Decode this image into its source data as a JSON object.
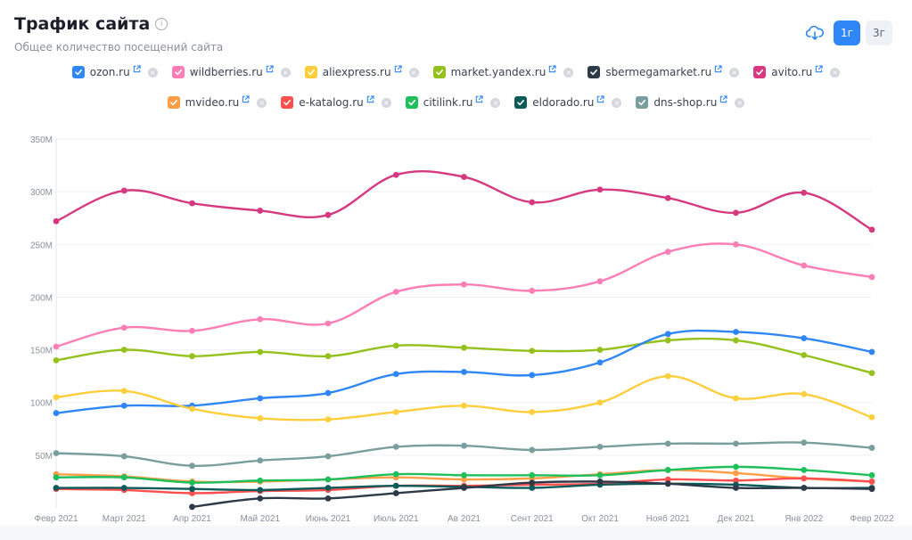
{
  "header": {
    "title": "Трафик сайта",
    "info_glyph": "i",
    "subtitle": "Общее количество посещений сайта"
  },
  "tools": {
    "download_icon": "cloud-download-icon",
    "period_1": "1г",
    "period_3": "3г",
    "active": "1г"
  },
  "legend": {
    "row1": [
      {
        "name": "ozon.ru",
        "color": "#2f86f6"
      },
      {
        "name": "wildberries.ru",
        "color": "#ff7eb6"
      },
      {
        "name": "aliexpress.ru",
        "color": "#ffce3d"
      },
      {
        "name": "market.yandex.ru",
        "color": "#94c11c"
      },
      {
        "name": "sbermegamarket.ru",
        "color": "#2e3a48"
      },
      {
        "name": "avito.ru",
        "color": "#d6397f"
      }
    ],
    "row2": [
      {
        "name": "mvideo.ru",
        "color": "#ff9e44"
      },
      {
        "name": "e-katalog.ru",
        "color": "#ff4f4f"
      },
      {
        "name": "citilink.ru",
        "color": "#1fbf5c"
      },
      {
        "name": "eldorado.ru",
        "color": "#0c5a5a"
      },
      {
        "name": "dns-shop.ru",
        "color": "#7a9e9e"
      }
    ]
  },
  "chart_data": {
    "type": "line",
    "categories": [
      "Февр 2021",
      "Март 2021",
      "Апр 2021",
      "Май 2021",
      "Июнь 2021",
      "Июль 2021",
      "Ав 2021",
      "Сент 2021",
      "Окт 2021",
      "Нояб 2021",
      "Дек 2021",
      "Янв 2022",
      "Февр 2022"
    ],
    "y_ticks": [
      "350M",
      "300M",
      "250M",
      "200M",
      "150M",
      "100M",
      "50M"
    ],
    "ylim": [
      0,
      350000000
    ],
    "grid": true,
    "series": [
      {
        "name": "avito.ru",
        "color": "#d6397f",
        "values": [
          272000000,
          301000000,
          289000000,
          282000000,
          278000000,
          316000000,
          314000000,
          290000000,
          302000000,
          294000000,
          280000000,
          299000000,
          264000000
        ]
      },
      {
        "name": "wildberries.ru",
        "color": "#ff7eb6",
        "values": [
          153000000,
          171000000,
          168000000,
          179000000,
          175000000,
          205000000,
          212000000,
          206000000,
          215000000,
          243000000,
          250000000,
          230000000,
          219000000
        ]
      },
      {
        "name": "market.yandex.ru",
        "color": "#94c11c",
        "values": [
          140000000,
          150000000,
          144000000,
          148000000,
          144000000,
          154000000,
          152000000,
          149000000,
          150000000,
          159000000,
          159000000,
          145000000,
          128000000
        ]
      },
      {
        "name": "ozon.ru",
        "color": "#2f86f6",
        "values": [
          90000000,
          97000000,
          97000000,
          104000000,
          109000000,
          127000000,
          129000000,
          126000000,
          138000000,
          165000000,
          167000000,
          161000000,
          148000000
        ]
      },
      {
        "name": "aliexpress.ru",
        "color": "#ffce3d",
        "values": [
          105000000,
          111000000,
          94000000,
          85000000,
          84000000,
          91000000,
          97000000,
          91000000,
          100000000,
          125000000,
          104000000,
          108000000,
          86000000
        ]
      },
      {
        "name": "dns-shop.ru",
        "color": "#7a9e9e",
        "values": [
          52000000,
          49000000,
          40000000,
          45000000,
          49000000,
          58000000,
          59000000,
          55000000,
          58000000,
          61000000,
          61000000,
          62000000,
          57000000
        ]
      },
      {
        "name": "mvideo.ru",
        "color": "#ff9e44",
        "values": [
          32000000,
          30000000,
          25000000,
          25000000,
          27000000,
          29000000,
          27000000,
          28000000,
          32000000,
          36000000,
          33000000,
          28000000,
          25000000
        ]
      },
      {
        "name": "citilink.ru",
        "color": "#1fbf5c",
        "values": [
          29000000,
          29000000,
          24000000,
          26000000,
          27000000,
          32000000,
          31000000,
          31000000,
          31000000,
          36000000,
          39000000,
          36000000,
          31000000
        ]
      },
      {
        "name": "e-katalog.ru",
        "color": "#ff4f4f",
        "values": [
          18000000,
          17000000,
          14000000,
          16000000,
          17000000,
          21000000,
          21000000,
          22000000,
          23000000,
          27000000,
          26000000,
          28000000,
          25000000
        ]
      },
      {
        "name": "eldorado.ru",
        "color": "#0c5a5a",
        "values": [
          19000000,
          19000000,
          18000000,
          17000000,
          19000000,
          21000000,
          20000000,
          19000000,
          22000000,
          23000000,
          22000000,
          19000000,
          19000000
        ]
      },
      {
        "name": "sbermegamarket.ru",
        "color": "#2e3a48",
        "values": [
          null,
          null,
          1000000,
          9000000,
          9000000,
          14000000,
          19000000,
          24000000,
          25000000,
          23000000,
          19000000,
          19000000,
          18000000
        ]
      }
    ]
  }
}
